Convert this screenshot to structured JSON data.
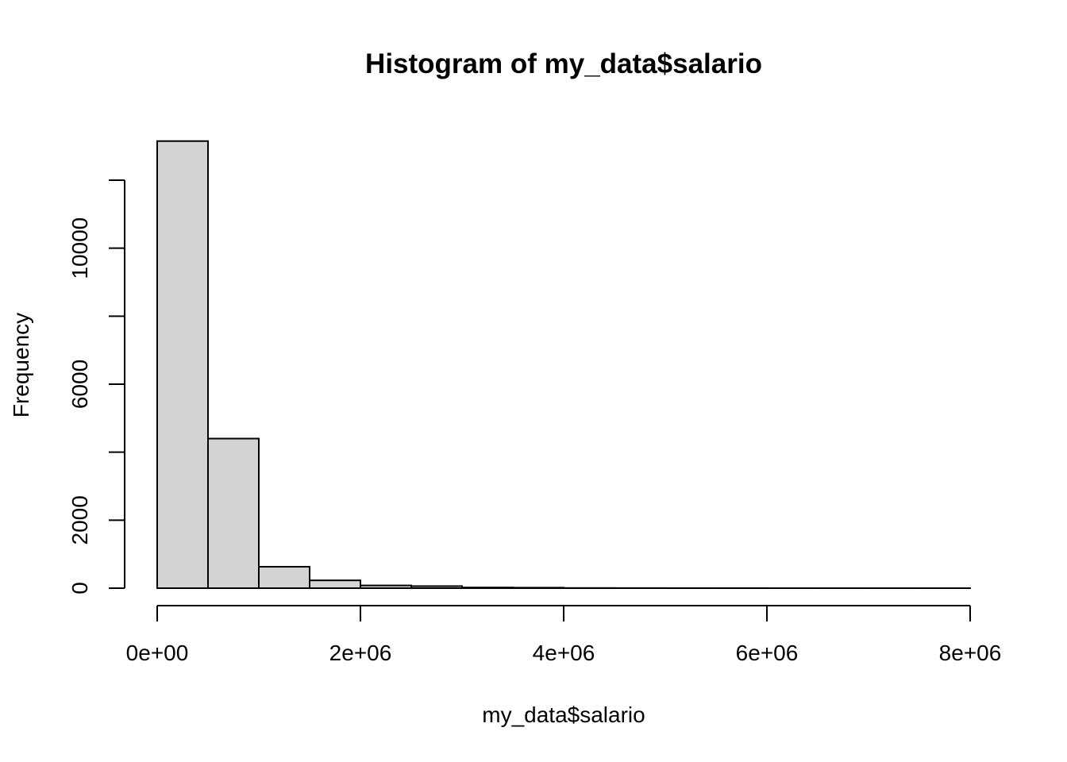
{
  "chart_data": {
    "type": "bar",
    "title": "Histogram of my_data$salario",
    "xlabel": "my_data$salario",
    "ylabel": "Frequency",
    "bin_edges": [
      0,
      500000,
      1000000,
      1500000,
      2000000,
      2500000,
      3000000,
      3500000,
      4000000,
      4500000,
      5000000,
      5500000,
      6000000,
      6500000,
      7000000,
      7500000,
      8000000
    ],
    "values": [
      13150,
      4400,
      630,
      230,
      80,
      60,
      20,
      15,
      5,
      3,
      2,
      2,
      1,
      1,
      1,
      1
    ],
    "xlim": [
      0,
      8000000
    ],
    "ylim": [
      0,
      13200
    ],
    "x_ticks": [
      0,
      2000000,
      4000000,
      6000000,
      8000000
    ],
    "x_tick_labels": [
      "0e+00",
      "2e+06",
      "4e+06",
      "6e+06",
      "8e+06"
    ],
    "y_ticks": [
      0,
      2000,
      4000,
      6000,
      8000,
      10000,
      12000
    ],
    "y_tick_labels": [
      "0",
      "2000",
      "",
      "6000",
      "",
      "10000",
      ""
    ],
    "bar_fill": "#d3d3d3",
    "bar_stroke": "#000000",
    "grid": false,
    "legend": "none"
  }
}
